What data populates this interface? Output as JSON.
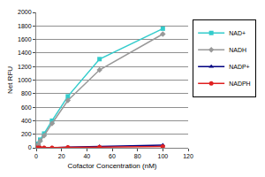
{
  "chart_data": {
    "type": "line",
    "x_label": "Cofactor Concentration (nM)",
    "y_label": "Net RFU",
    "x": [
      0,
      1.5625,
      3.125,
      6.25,
      12.5,
      25,
      50,
      100
    ],
    "series": [
      {
        "name": "NAD+",
        "color": "#33cccc",
        "marker": "square",
        "values": [
          0,
          60,
          120,
          210,
          400,
          760,
          1310,
          1760
        ]
      },
      {
        "name": "NADH",
        "color": "#999999",
        "marker": "diamond",
        "values": [
          0,
          50,
          100,
          180,
          360,
          700,
          1150,
          1680
        ]
      },
      {
        "name": "NADP+",
        "color": "#000080",
        "marker": "triangle",
        "values": [
          0,
          0,
          0,
          0,
          0,
          10,
          20,
          40
        ]
      },
      {
        "name": "NADPH",
        "color": "#e02020",
        "marker": "circle",
        "values": [
          0,
          0,
          0,
          0,
          0,
          5,
          10,
          20
        ]
      }
    ],
    "xlim": [
      0,
      120
    ],
    "xticks": [
      0,
      20,
      40,
      60,
      80,
      100,
      120
    ],
    "ylim": [
      0,
      2000
    ],
    "yticks": [
      0,
      200,
      400,
      600,
      800,
      1000,
      1200,
      1400,
      1600,
      1800,
      2000
    ],
    "grid": true,
    "legend": "right"
  }
}
